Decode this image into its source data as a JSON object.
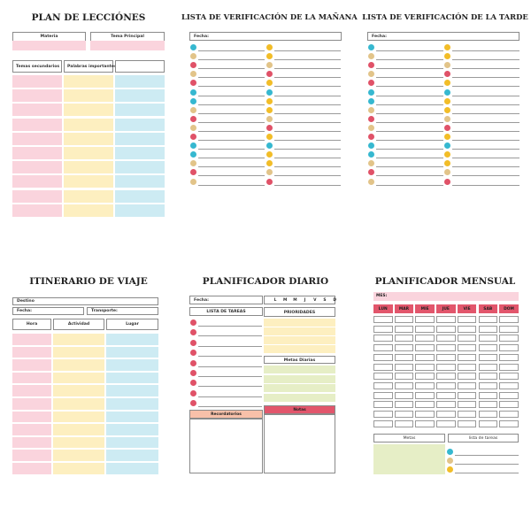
{
  "colors": {
    "pink": "#fad4dd",
    "yellow": "#fdefc0",
    "blue": "#cdebf3",
    "green": "#e6eec6",
    "salmon": "#f8c0a9",
    "red": "#e2566c",
    "dot_blue": "#36b8d0",
    "dot_tan": "#e2c489",
    "dot_yellow": "#f2bd28",
    "dot_red": "#e05268"
  },
  "lesson_plan": {
    "title": "PLAN DE LECCIÓNES",
    "subject_label": "Materia",
    "main_topic_label": "Tema Principal",
    "secondary_topics_label": "Temas secundarios",
    "keywords_label": "Palabras importantes"
  },
  "morning_checklist": {
    "title": "LISTA DE VERIFICACIÓN DE LA MAÑANA",
    "date_label": "Fecha:"
  },
  "afternoon_checklist": {
    "title": "LISTA DE VERIFICACIÓN DE LA TARDE",
    "date_label": "Fecha:"
  },
  "travel_itinerary": {
    "title": "ITINERARIO DE VIAJE",
    "destination_label": "Destino",
    "date_label": "Fecha:",
    "transport_label": "Transporte:",
    "col_time": "Hora",
    "col_activity": "Actividad",
    "col_place": "Lugar"
  },
  "daily_planner": {
    "title": "PLANIFICADOR DIARIO",
    "date_label": "Fecha:",
    "days": [
      "L",
      "M",
      "M",
      "J",
      "V",
      "S",
      "D"
    ],
    "tasks_label": "LISTA DE TAREAS",
    "priorities_label": "PRIORIDADES",
    "daily_goals_label": "Metas Diarias",
    "reminders_label": "Recordatorios",
    "notes_label": "Notas"
  },
  "monthly_planner": {
    "title": "PLANIFICADOR MENSUAL",
    "month_label": "MES:",
    "days": [
      "LUN",
      "MAR",
      "MIE",
      "JUE",
      "VIE",
      "SAB",
      "DOM"
    ],
    "goals_label": "Metas",
    "tasks_label": "lista de tareas"
  }
}
